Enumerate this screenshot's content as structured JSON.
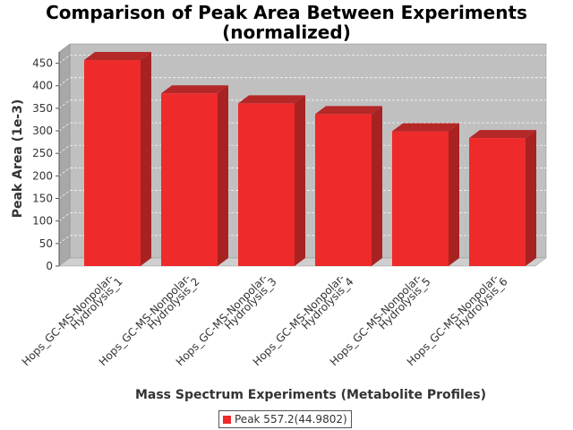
{
  "chart_data": {
    "type": "bar",
    "title_lines": [
      "Comparison of Peak Area Between Experiments",
      "(normalized)"
    ],
    "xlabel": "Mass Spectrum Experiments (Metabolite Profiles)",
    "ylabel": "Peak Area (1e-3)",
    "categories": [
      [
        "Hops_GC-MS-Nonpolar-",
        "Hydrolysis_1"
      ],
      [
        "Hops_GC-MS-Nonpolar-",
        "Hydrolysis_2"
      ],
      [
        "Hops_GC-MS-Nonpolar-",
        "Hydrolysis_3"
      ],
      [
        "Hops_GC-MS-Nonpolar-",
        "Hydrolysis_4"
      ],
      [
        "Hops_GC-MS-Nonpolar-",
        "Hydrolysis_5"
      ],
      [
        "Hops_GC-MS-Nonpolar-",
        "Hydrolysis_6"
      ]
    ],
    "series": [
      {
        "name": "Peak 557.2(44.9802)",
        "values": [
          457,
          383,
          361,
          337,
          299,
          284
        ],
        "color": "#ee2a2a"
      }
    ],
    "yticks": [
      "0",
      "50",
      "100",
      "150",
      "200",
      "250",
      "300",
      "350",
      "400",
      "450"
    ],
    "ylim": [
      0,
      475
    ],
    "grid": true,
    "legend_position": "bottom",
    "plot_background": "#c0c0c0",
    "render": "3d"
  }
}
